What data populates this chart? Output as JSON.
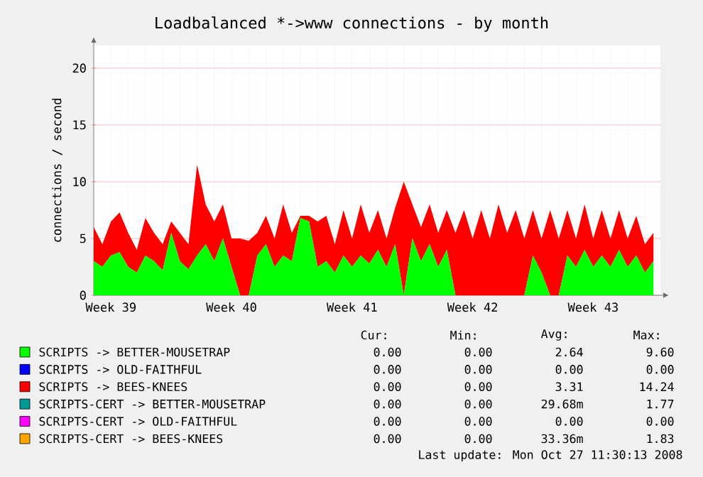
{
  "chart_data": {
    "type": "area",
    "stacked": true,
    "title": "Loadbalanced *->www connections - by month",
    "ylabel": "connections / second",
    "categories": [
      null,
      null,
      "Week 39",
      null,
      null,
      null,
      null,
      null,
      null,
      null,
      null,
      null,
      null,
      null,
      null,
      null,
      "Week 40",
      null,
      null,
      null,
      null,
      null,
      null,
      null,
      null,
      null,
      null,
      null,
      null,
      null,
      "Week 41",
      null,
      null,
      null,
      null,
      null,
      null,
      null,
      null,
      null,
      null,
      null,
      null,
      null,
      "Week 42",
      null,
      null,
      null,
      null,
      null,
      null,
      null,
      null,
      null,
      null,
      null,
      null,
      null,
      "Week 43",
      null,
      null,
      null,
      null,
      null,
      null,
      null
    ],
    "ylim": [
      0,
      22
    ],
    "yticks": [
      0,
      5,
      10,
      15,
      20
    ],
    "grid": true,
    "legend": "bottom",
    "series": [
      {
        "name": "SCRIPTS -> BETTER-MOUSETRAP",
        "color": "#00ff00",
        "values": [
          3.0,
          2.5,
          3.5,
          3.8,
          2.5,
          2.0,
          3.5,
          3.0,
          2.2,
          5.5,
          3.0,
          2.3,
          3.5,
          4.5,
          3.0,
          5.0,
          2.5,
          0,
          0,
          3.5,
          4.5,
          2.5,
          3.5,
          3.0,
          6.8,
          6.5,
          2.5,
          3.0,
          2.0,
          3.5,
          2.5,
          3.5,
          2.8,
          4.0,
          2.5,
          4.5,
          0,
          5.0,
          3.0,
          4.5,
          2.5,
          4.0,
          0,
          0,
          0,
          0,
          0,
          0,
          0,
          0,
          0,
          3.5,
          2.0,
          0,
          0,
          3.5,
          2.5,
          4.0,
          2.5,
          3.5,
          2.5,
          4.0,
          2.5,
          3.5,
          2.0,
          3.0
        ]
      },
      {
        "name": "SCRIPTS -> OLD-FAITHFUL",
        "color": "#0000ff",
        "values": [
          null,
          null,
          null,
          null,
          null,
          null,
          null,
          null,
          null,
          null,
          null,
          null,
          null,
          null,
          null,
          null,
          null,
          null,
          null,
          null,
          null,
          null,
          null,
          null,
          null,
          null,
          null,
          null,
          null,
          null,
          null,
          null,
          null,
          null,
          null,
          null,
          null,
          null,
          null,
          null,
          null,
          null,
          null,
          null,
          null,
          null,
          null,
          null,
          null,
          null,
          null,
          null,
          null,
          null,
          null,
          null,
          null,
          null,
          null,
          null,
          null,
          null,
          null,
          null,
          null,
          null
        ]
      },
      {
        "name": "SCRIPTS -> BEES-KNEES",
        "color": "#ff0000",
        "values": [
          3.0,
          2.0,
          3.0,
          3.5,
          3.0,
          2.0,
          3.3,
          2.5,
          2.3,
          1.0,
          2.5,
          2.2,
          8.0,
          3.5,
          3.5,
          3.0,
          2.5,
          5.0,
          4.8,
          2.0,
          2.5,
          2.5,
          4.5,
          2.5,
          0.2,
          0.5,
          4.0,
          4.0,
          2.5,
          4.0,
          2.5,
          4.5,
          2.7,
          3.5,
          2.5,
          3.2,
          10.0,
          3.0,
          3.0,
          3.5,
          3.0,
          3.5,
          5.5,
          7.5,
          5.0,
          7.5,
          5.0,
          8.0,
          5.5,
          7.5,
          5.0,
          4.0,
          3.0,
          7.5,
          5.0,
          4.0,
          2.5,
          4.0,
          2.5,
          4.0,
          2.5,
          3.5,
          2.5,
          3.5,
          2.5,
          2.5
        ]
      },
      {
        "name": "SCRIPTS-CERT -> BETTER-MOUSETRAP",
        "color": "#009999",
        "values": [
          null,
          null,
          null,
          null,
          null,
          null,
          null,
          null,
          null,
          null,
          null,
          null,
          null,
          null,
          null,
          null,
          null,
          null,
          null,
          null,
          null,
          null,
          null,
          null,
          null,
          null,
          null,
          null,
          null,
          null,
          null,
          null,
          null,
          null,
          null,
          null,
          null,
          null,
          null,
          null,
          null,
          null,
          null,
          null,
          null,
          null,
          null,
          null,
          null,
          null,
          null,
          null,
          null,
          null,
          null,
          null,
          null,
          null,
          null,
          null,
          null,
          null,
          null,
          null,
          null,
          null
        ]
      },
      {
        "name": "SCRIPTS-CERT -> OLD-FAITHFUL",
        "color": "#ff00ff",
        "values": [
          null,
          null,
          null,
          null,
          null,
          null,
          null,
          null,
          null,
          null,
          null,
          null,
          null,
          null,
          null,
          null,
          null,
          null,
          null,
          null,
          null,
          null,
          null,
          null,
          null,
          null,
          null,
          null,
          null,
          null,
          null,
          null,
          null,
          null,
          null,
          null,
          null,
          null,
          null,
          null,
          null,
          null,
          null,
          null,
          null,
          null,
          null,
          null,
          null,
          null,
          null,
          null,
          null,
          null,
          null,
          null,
          null,
          null,
          null,
          null,
          null,
          null,
          null,
          null,
          null,
          null
        ]
      },
      {
        "name": "SCRIPTS-CERT -> BEES-KNEES",
        "color": "#ffa500",
        "values": [
          null,
          null,
          null,
          null,
          null,
          null,
          null,
          null,
          null,
          null,
          null,
          null,
          null,
          null,
          null,
          null,
          null,
          null,
          null,
          null,
          null,
          null,
          null,
          null,
          null,
          null,
          null,
          null,
          null,
          null,
          null,
          null,
          null,
          null,
          null,
          null,
          null,
          null,
          null,
          null,
          null,
          null,
          null,
          null,
          null,
          null,
          null,
          null,
          null,
          null,
          null,
          null,
          null,
          null,
          null,
          null,
          null,
          null,
          null,
          null,
          null,
          null,
          null,
          null,
          null,
          null
        ]
      }
    ],
    "annotations": [
      "Cur:",
      "Min:",
      "Avg:",
      "Max:",
      "0.00",
      "0.00",
      "2.64",
      "9.60",
      "0.00",
      "0.00",
      "0.00",
      "0.00",
      "0.00",
      "0.00",
      "3.31",
      "14.24",
      "0.00",
      "0.00",
      "29.68m",
      "1.77",
      "0.00",
      "0.00",
      "0.00",
      "0.00",
      "0.00",
      "0.00",
      "33.36m",
      "1.83",
      "Last update: Mon Oct 27 11:30:13 2008"
    ]
  }
}
